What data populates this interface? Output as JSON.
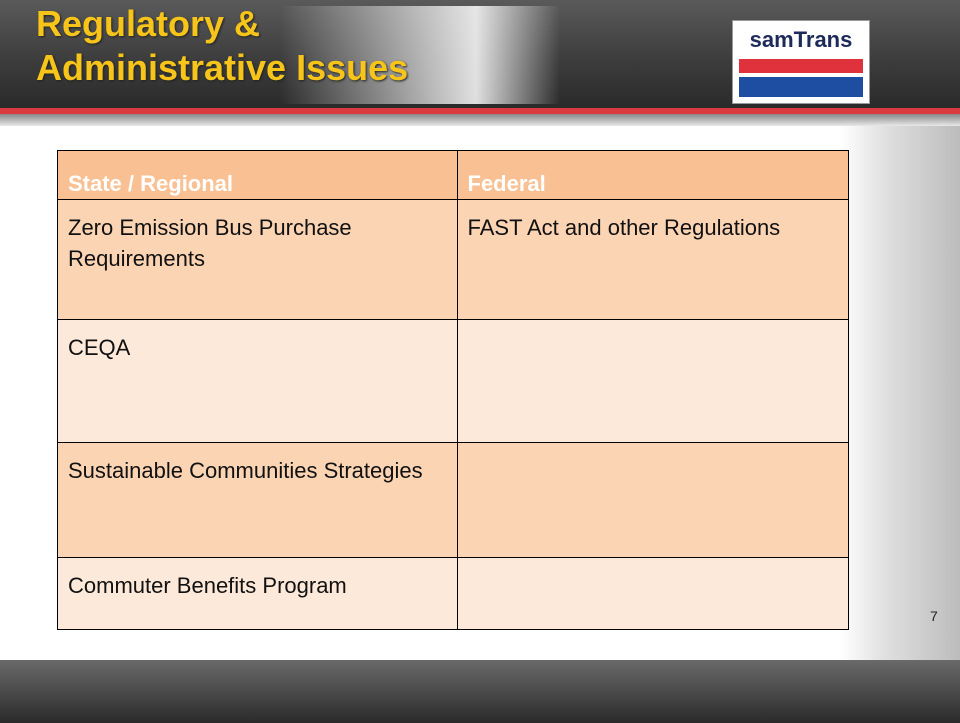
{
  "header": {
    "title_lines": [
      "Regulatory &",
      "Administrative Issues"
    ],
    "logo": "samTrans"
  },
  "table": {
    "columns": [
      "State  / Regional",
      "Federal"
    ],
    "rows": [
      [
        "Zero Emission Bus Purchase Requirements",
        "FAST Act and other Regulations"
      ],
      [
        "CEQA",
        null
      ],
      [
        "Sustainable Communities Strategies",
        null
      ],
      [
        "Commuter Benefits Program",
        null
      ]
    ]
  },
  "page_number": "7"
}
